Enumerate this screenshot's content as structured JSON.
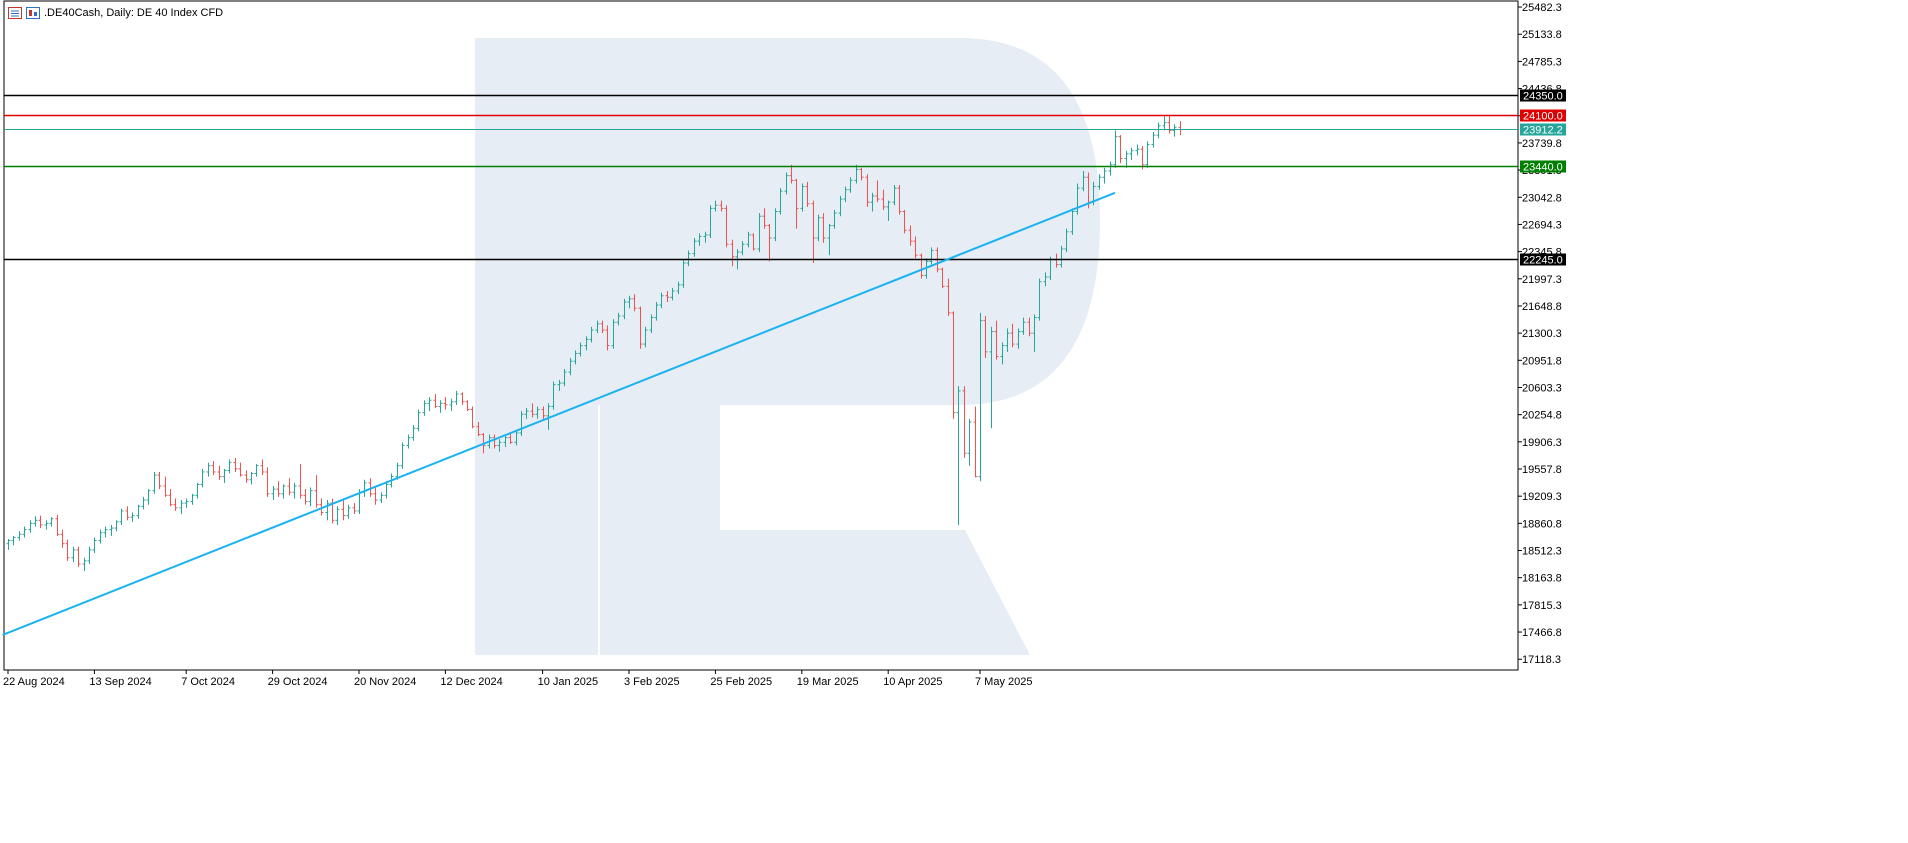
{
  "header": {
    "title": ".DE40Cash, Daily:  DE 40 Index CFD",
    "icons": [
      "chart-window-icon",
      "indicator-icon"
    ]
  },
  "colors": {
    "bull": "#26a69a",
    "bear": "#ef5350",
    "trendline": "#1ab2f0",
    "resistance_upper": "#000000",
    "resistance_red": "#e00000",
    "current_price": "#26a69a",
    "support_green": "#008000",
    "support_lower": "#000000",
    "watermark": "#e7edf5"
  },
  "chart_data": {
    "type": "ohlc",
    "symbol": ".DE40Cash",
    "timeframe": "Daily",
    "instrument": "DE 40 Index CFD",
    "y_ticks": [
      "25482.3",
      "25133.8",
      "24785.3",
      "24436.8",
      "24088.3",
      "23739.8",
      "23391.3",
      "23042.8",
      "22694.3",
      "22345.8",
      "21997.3",
      "21648.8",
      "21300.3",
      "20951.8",
      "20603.3",
      "20254.8",
      "19906.3",
      "19557.8",
      "19209.3",
      "18860.8",
      "18512.3",
      "18163.8",
      "17815.3",
      "17466.8",
      "17118.3"
    ],
    "ylim": [
      16980,
      25560
    ],
    "x_ticks": [
      "22 Aug 2024",
      "13 Sep 2024",
      "7 Oct 2024",
      "29 Oct 2024",
      "20 Nov 2024",
      "12 Dec 2024",
      "10 Jan 2025",
      "3 Feb 2025",
      "25 Feb 2025",
      "19 Mar 2025",
      "10 Apr 2025",
      "7 May 2025"
    ],
    "x_tick_bars": [
      0,
      16,
      33,
      49,
      65,
      81,
      99,
      115,
      131,
      147,
      163,
      180
    ],
    "horizontal_levels": [
      {
        "label": "24350.0",
        "value": 24350.0,
        "color_key": "resistance_upper"
      },
      {
        "label": "24100.0",
        "value": 24100.0,
        "color_key": "resistance_red"
      },
      {
        "label": "23912.2",
        "value": 23912.2,
        "color_key": "current_price"
      },
      {
        "label": "23440.0",
        "value": 23440.0,
        "color_key": "support_green"
      },
      {
        "label": "22245.0",
        "value": 22245.0,
        "color_key": "support_lower"
      }
    ],
    "trendline": {
      "from_bar": -1,
      "from_value": 17430,
      "to_bar": 205,
      "to_value": 23100
    },
    "bars": [
      [
        18600,
        18660,
        18520,
        18640
      ],
      [
        18640,
        18700,
        18580,
        18680
      ],
      [
        18680,
        18760,
        18640,
        18720
      ],
      [
        18720,
        18820,
        18680,
        18780
      ],
      [
        18780,
        18900,
        18740,
        18860
      ],
      [
        18860,
        18950,
        18820,
        18900
      ],
      [
        18900,
        18960,
        18800,
        18840
      ],
      [
        18840,
        18900,
        18780,
        18860
      ],
      [
        18860,
        18940,
        18820,
        18920
      ],
      [
        18920,
        18970,
        18700,
        18720
      ],
      [
        18720,
        18780,
        18550,
        18600
      ],
      [
        18600,
        18650,
        18380,
        18420
      ],
      [
        18420,
        18560,
        18360,
        18520
      ],
      [
        18520,
        18560,
        18300,
        18340
      ],
      [
        18340,
        18420,
        18250,
        18380
      ],
      [
        18380,
        18560,
        18340,
        18520
      ],
      [
        18520,
        18680,
        18480,
        18640
      ],
      [
        18640,
        18780,
        18600,
        18740
      ],
      [
        18740,
        18820,
        18680,
        18780
      ],
      [
        18780,
        18840,
        18700,
        18800
      ],
      [
        18800,
        18900,
        18760,
        18880
      ],
      [
        18880,
        19050,
        18840,
        19020
      ],
      [
        19020,
        19080,
        18900,
        18940
      ],
      [
        18940,
        19000,
        18880,
        18960
      ],
      [
        18960,
        19100,
        18920,
        19080
      ],
      [
        19080,
        19200,
        19040,
        19160
      ],
      [
        19160,
        19300,
        19100,
        19280
      ],
      [
        19280,
        19520,
        19240,
        19480
      ],
      [
        19480,
        19520,
        19300,
        19340
      ],
      [
        19340,
        19460,
        19200,
        19220
      ],
      [
        19220,
        19300,
        19080,
        19100
      ],
      [
        19100,
        19180,
        19020,
        19060
      ],
      [
        19060,
        19160,
        18980,
        19120
      ],
      [
        19120,
        19180,
        19060,
        19140
      ],
      [
        19140,
        19240,
        19100,
        19220
      ],
      [
        19220,
        19380,
        19180,
        19360
      ],
      [
        19360,
        19560,
        19320,
        19520
      ],
      [
        19520,
        19640,
        19460,
        19600
      ],
      [
        19600,
        19660,
        19480,
        19520
      ],
      [
        19520,
        19600,
        19420,
        19460
      ],
      [
        19460,
        19560,
        19380,
        19540
      ],
      [
        19540,
        19680,
        19500,
        19640
      ],
      [
        19640,
        19700,
        19520,
        19560
      ],
      [
        19560,
        19640,
        19460,
        19480
      ],
      [
        19480,
        19540,
        19380,
        19420
      ],
      [
        19420,
        19520,
        19360,
        19500
      ],
      [
        19500,
        19620,
        19460,
        19600
      ],
      [
        19600,
        19680,
        19480,
        19520
      ],
      [
        19520,
        19580,
        19200,
        19240
      ],
      [
        19240,
        19340,
        19160,
        19300
      ],
      [
        19300,
        19400,
        19200,
        19240
      ],
      [
        19240,
        19360,
        19180,
        19340
      ],
      [
        19340,
        19440,
        19220,
        19260
      ],
      [
        19260,
        19380,
        19180,
        19340
      ],
      [
        19340,
        19620,
        19180,
        19220
      ],
      [
        19220,
        19300,
        19100,
        19140
      ],
      [
        19140,
        19320,
        19080,
        19280
      ],
      [
        19280,
        19480,
        19060,
        19100
      ],
      [
        19100,
        19180,
        18960,
        19000
      ],
      [
        19000,
        19160,
        18900,
        19120
      ],
      [
        19120,
        19180,
        18860,
        18900
      ],
      [
        18900,
        19080,
        18840,
        19040
      ],
      [
        19040,
        19160,
        18900,
        18960
      ],
      [
        18960,
        19100,
        18920,
        19060
      ],
      [
        19060,
        19120,
        18980,
        19020
      ],
      [
        19020,
        19300,
        18980,
        19260
      ],
      [
        19260,
        19420,
        19200,
        19380
      ],
      [
        19380,
        19440,
        19200,
        19240
      ],
      [
        19240,
        19320,
        19100,
        19160
      ],
      [
        19160,
        19260,
        19120,
        19220
      ],
      [
        19220,
        19400,
        19180,
        19360
      ],
      [
        19360,
        19500,
        19320,
        19460
      ],
      [
        19460,
        19640,
        19420,
        19600
      ],
      [
        19600,
        19900,
        19560,
        19860
      ],
      [
        19860,
        20000,
        19820,
        19960
      ],
      [
        19960,
        20120,
        19920,
        20080
      ],
      [
        20080,
        20320,
        20040,
        20280
      ],
      [
        20280,
        20440,
        20240,
        20400
      ],
      [
        20400,
        20480,
        20300,
        20440
      ],
      [
        20440,
        20520,
        20340,
        20360
      ],
      [
        20360,
        20440,
        20280,
        20400
      ],
      [
        20400,
        20480,
        20320,
        20380
      ],
      [
        20380,
        20460,
        20300,
        20420
      ],
      [
        20420,
        20560,
        20380,
        20520
      ],
      [
        20520,
        20540,
        20380,
        20420
      ],
      [
        20420,
        20440,
        20300,
        20320
      ],
      [
        20320,
        20360,
        20080,
        20100
      ],
      [
        20100,
        20160,
        19980,
        20000
      ],
      [
        20000,
        20020,
        19760,
        19860
      ],
      [
        19860,
        20000,
        19820,
        19960
      ],
      [
        19960,
        20000,
        19820,
        19860
      ],
      [
        19860,
        19940,
        19780,
        19900
      ],
      [
        19900,
        19980,
        19840,
        19960
      ],
      [
        19960,
        20020,
        19880,
        19900
      ],
      [
        19900,
        20060,
        19860,
        20020
      ],
      [
        20020,
        20300,
        19980,
        20260
      ],
      [
        20260,
        20340,
        20200,
        20300
      ],
      [
        20300,
        20400,
        20220,
        20260
      ],
      [
        20260,
        20360,
        20200,
        20320
      ],
      [
        20320,
        20360,
        20200,
        20240
      ],
      [
        20240,
        20400,
        20060,
        20360
      ],
      [
        20360,
        20680,
        20320,
        20640
      ],
      [
        20640,
        20700,
        20560,
        20660
      ],
      [
        20660,
        20840,
        20620,
        20800
      ],
      [
        20800,
        20980,
        20760,
        20940
      ],
      [
        20940,
        21080,
        20900,
        21040
      ],
      [
        21040,
        21180,
        21000,
        21140
      ],
      [
        21140,
        21260,
        21080,
        21220
      ],
      [
        21220,
        21380,
        21180,
        21340
      ],
      [
        21340,
        21460,
        21300,
        21420
      ],
      [
        21420,
        21460,
        21300,
        21340
      ],
      [
        21340,
        21400,
        21080,
        21140
      ],
      [
        21140,
        21480,
        21100,
        21440
      ],
      [
        21440,
        21560,
        21400,
        21520
      ],
      [
        21520,
        21740,
        21480,
        21700
      ],
      [
        21700,
        21780,
        21620,
        21740
      ],
      [
        21740,
        21800,
        21580,
        21620
      ],
      [
        21620,
        21640,
        21100,
        21160
      ],
      [
        21160,
        21380,
        21120,
        21340
      ],
      [
        21340,
        21540,
        21300,
        21500
      ],
      [
        21500,
        21700,
        21460,
        21660
      ],
      [
        21660,
        21820,
        21620,
        21780
      ],
      [
        21780,
        21840,
        21700,
        21760
      ],
      [
        21760,
        21880,
        21720,
        21840
      ],
      [
        21840,
        21960,
        21800,
        21920
      ],
      [
        21920,
        22240,
        21880,
        22200
      ],
      [
        22200,
        22360,
        22160,
        22320
      ],
      [
        22320,
        22520,
        22280,
        22480
      ],
      [
        22480,
        22580,
        22420,
        22540
      ],
      [
        22540,
        22600,
        22460,
        22560
      ],
      [
        22560,
        22940,
        22520,
        22900
      ],
      [
        22900,
        23000,
        22860,
        22940
      ],
      [
        22940,
        23000,
        22860,
        22900
      ],
      [
        22900,
        22940,
        22400,
        22440
      ],
      [
        22440,
        22500,
        22160,
        22280
      ],
      [
        22280,
        22380,
        22120,
        22340
      ],
      [
        22340,
        22480,
        22300,
        22440
      ],
      [
        22440,
        22600,
        22400,
        22560
      ],
      [
        22560,
        22580,
        22360,
        22380
      ],
      [
        22380,
        22840,
        22340,
        22800
      ],
      [
        22800,
        22900,
        22640,
        22680
      ],
      [
        22680,
        22700,
        22220,
        22520
      ],
      [
        22520,
        22900,
        22480,
        22860
      ],
      [
        22860,
        23160,
        22820,
        23120
      ],
      [
        23120,
        23360,
        23080,
        23320
      ],
      [
        23320,
        23460,
        23220,
        23260
      ],
      [
        23260,
        23280,
        22640,
        22900
      ],
      [
        22900,
        23220,
        22860,
        23180
      ],
      [
        23180,
        23240,
        22920,
        22960
      ],
      [
        22960,
        23000,
        22200,
        22520
      ],
      [
        22520,
        22820,
        22480,
        22780
      ],
      [
        22780,
        22840,
        22460,
        22520
      ],
      [
        22520,
        22700,
        22300,
        22680
      ],
      [
        22680,
        22880,
        22640,
        22840
      ],
      [
        22840,
        23060,
        22800,
        23020
      ],
      [
        23020,
        23180,
        22980,
        23140
      ],
      [
        23140,
        23300,
        23100,
        23260
      ],
      [
        23260,
        23460,
        23220,
        23400
      ],
      [
        23400,
        23420,
        23260,
        23300
      ],
      [
        23300,
        23340,
        22920,
        22980
      ],
      [
        22980,
        23100,
        22860,
        23060
      ],
      [
        23060,
        23260,
        22980,
        23020
      ],
      [
        23020,
        23140,
        22880,
        22920
      ],
      [
        22920,
        23000,
        22740,
        22980
      ],
      [
        22980,
        23200,
        22940,
        23160
      ],
      [
        23160,
        23200,
        22820,
        22860
      ],
      [
        22860,
        22880,
        22580,
        22620
      ],
      [
        22620,
        22680,
        22420,
        22480
      ],
      [
        22480,
        22540,
        22260,
        22300
      ],
      [
        22300,
        22320,
        22000,
        22040
      ],
      [
        22040,
        22260,
        22000,
        22220
      ],
      [
        22220,
        22400,
        22180,
        22360
      ],
      [
        22360,
        22400,
        22080,
        22120
      ],
      [
        22120,
        22140,
        21880,
        21900
      ],
      [
        21900,
        22000,
        21520,
        21560
      ],
      [
        21560,
        21580,
        20200,
        20280
      ],
      [
        20280,
        20620,
        18840,
        20560
      ],
      [
        20560,
        20620,
        19700,
        19760
      ],
      [
        19760,
        20200,
        19600,
        20160
      ],
      [
        20160,
        20360,
        19450,
        19460
      ],
      [
        19460,
        21560,
        19400,
        21460
      ],
      [
        21460,
        21520,
        20980,
        21060
      ],
      [
        21060,
        21380,
        20080,
        21320
      ],
      [
        21320,
        21460,
        20960,
        21000
      ],
      [
        21000,
        21180,
        20900,
        21140
      ],
      [
        21140,
        21360,
        21060,
        21300
      ],
      [
        21300,
        21420,
        21120,
        21160
      ],
      [
        21160,
        21360,
        21100,
        21320
      ],
      [
        21320,
        21500,
        21280,
        21440
      ],
      [
        21440,
        21500,
        21260,
        21300
      ],
      [
        21300,
        21540,
        21060,
        21500
      ],
      [
        21500,
        22000,
        21460,
        21960
      ],
      [
        21960,
        22080,
        21900,
        22020
      ],
      [
        22020,
        22280,
        21980,
        22240
      ],
      [
        22240,
        22320,
        22140,
        22180
      ],
      [
        22180,
        22420,
        22140,
        22380
      ],
      [
        22380,
        22640,
        22340,
        22600
      ],
      [
        22600,
        22900,
        22560,
        22860
      ],
      [
        22860,
        23220,
        22820,
        23160
      ],
      [
        23160,
        23380,
        23120,
        23300
      ],
      [
        23300,
        23360,
        22900,
        22980
      ],
      [
        22980,
        23240,
        22940,
        23180
      ],
      [
        23180,
        23340,
        23140,
        23300
      ],
      [
        23300,
        23420,
        23220,
        23380
      ],
      [
        23380,
        23500,
        23320,
        23460
      ],
      [
        23460,
        23900,
        23420,
        23820
      ],
      [
        23820,
        23840,
        23480,
        23540
      ],
      [
        23540,
        23640,
        23420,
        23600
      ],
      [
        23600,
        23680,
        23520,
        23640
      ],
      [
        23640,
        23720,
        23580,
        23660
      ],
      [
        23660,
        23700,
        23400,
        23460
      ],
      [
        23460,
        23760,
        23420,
        23720
      ],
      [
        23720,
        23880,
        23680,
        23840
      ],
      [
        23840,
        24000,
        23800,
        23960
      ],
      [
        23960,
        24080,
        23900,
        24000
      ],
      [
        24000,
        24100,
        23860,
        23900
      ],
      [
        23900,
        23980,
        23820,
        23940
      ],
      [
        23940,
        24020,
        23840,
        23912
      ]
    ]
  }
}
